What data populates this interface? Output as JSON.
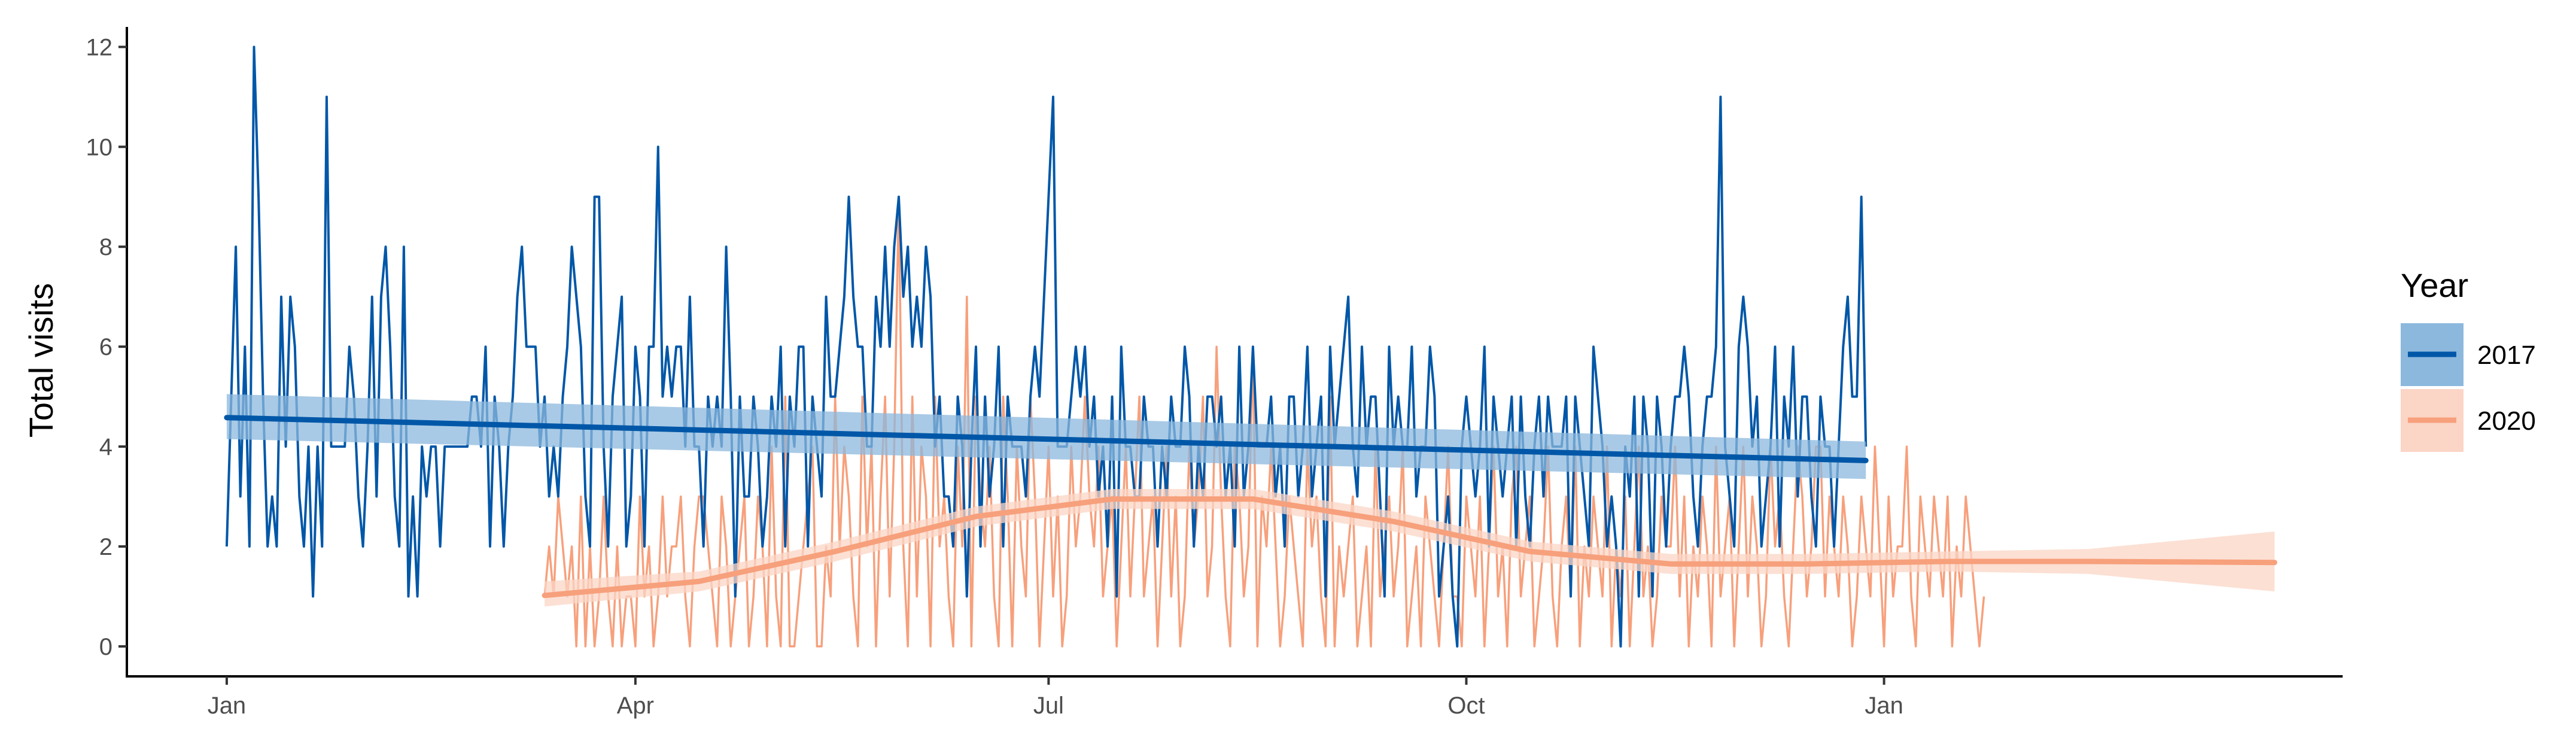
{
  "chart_data": {
    "type": "line",
    "ylabel": "Total visits",
    "xlabel": "",
    "x_tick_labels": [
      "Jan",
      "Apr",
      "Jul",
      "Oct",
      "Jan"
    ],
    "x_ticks": [
      "2017-01-01",
      "2017-04-01",
      "2017-07-01",
      "2017-10-01",
      "2018-01-01"
    ],
    "xlim": [
      "2016-12-10",
      "2018-04-12"
    ],
    "y_ticks": [
      0,
      2,
      4,
      6,
      8,
      10,
      12
    ],
    "ylim": [
      -0.6,
      12.4
    ],
    "grid": false,
    "legend": {
      "title": "Year",
      "position": "right",
      "entries": [
        {
          "label": "2017",
          "color": "#0057a8",
          "band_color": "#8cb8dd"
        },
        {
          "label": "2020",
          "color": "#f7a07c",
          "band_color": "#fbd5c6"
        }
      ]
    },
    "series": [
      {
        "name": "2017",
        "color": "#0057a8",
        "start_date": "2017-01-01",
        "values": [
          2,
          5,
          8,
          3,
          6,
          2,
          12,
          9,
          5,
          2,
          3,
          2,
          7,
          4,
          7,
          6,
          3,
          2,
          4,
          1,
          4,
          2,
          11,
          4,
          4,
          4,
          4,
          6,
          5,
          3,
          2,
          4,
          7,
          3,
          7,
          8,
          6,
          3,
          2,
          8,
          1,
          3,
          1,
          4,
          3,
          4,
          4,
          2,
          4,
          4,
          4,
          4,
          4,
          4,
          5,
          5,
          4,
          6,
          2,
          5,
          4,
          2,
          4,
          5,
          7,
          8,
          6,
          6,
          6,
          4,
          5,
          3,
          4,
          3,
          5,
          6,
          8,
          7,
          6,
          3,
          2,
          9,
          9,
          4,
          2,
          5,
          6,
          7,
          2,
          3,
          6,
          5,
          2,
          6,
          6,
          10,
          5,
          6,
          5,
          6,
          6,
          4,
          7,
          4,
          4,
          2,
          5,
          4,
          5,
          4,
          8,
          5,
          1,
          5,
          3,
          3,
          5,
          4,
          2,
          3,
          5,
          4,
          6,
          2,
          5,
          4,
          6,
          6,
          2,
          5,
          4,
          3,
          7,
          5,
          5,
          6,
          7,
          9,
          7,
          6,
          6,
          4,
          4,
          7,
          6,
          8,
          6,
          8,
          9,
          7,
          8,
          6,
          7,
          6,
          8,
          7,
          4,
          5,
          3,
          3,
          2,
          5,
          4,
          1,
          4,
          6,
          2,
          5,
          3,
          4,
          6,
          2,
          5,
          4,
          4,
          4,
          3,
          5,
          6,
          5,
          7,
          9,
          11,
          4,
          4,
          4,
          5,
          6,
          5,
          6,
          4,
          5,
          3,
          4,
          2,
          5,
          1,
          6,
          4,
          4,
          3,
          3,
          5,
          4,
          4,
          2,
          4,
          3,
          5,
          4,
          4,
          6,
          5,
          2,
          4,
          3,
          5,
          5,
          4,
          5,
          3,
          4,
          2,
          6,
          3,
          4,
          6,
          4,
          4,
          4,
          5,
          3,
          4,
          2,
          5,
          5,
          3,
          4,
          6,
          3,
          4,
          5,
          1,
          6,
          4,
          5,
          6,
          7,
          4,
          3,
          6,
          4,
          5,
          5,
          3,
          1,
          6,
          4,
          5,
          4,
          4,
          6,
          3,
          4,
          4,
          6,
          5,
          1,
          2,
          3,
          1,
          0,
          4,
          5,
          4,
          3,
          4,
          6,
          2,
          5,
          4,
          3,
          4,
          5,
          2,
          5,
          3,
          2,
          4,
          5,
          3,
          5,
          4,
          4,
          4,
          5,
          1,
          5,
          4,
          3,
          2,
          6,
          5,
          4,
          2,
          3,
          2,
          0,
          4,
          3,
          5,
          1,
          5,
          4,
          1,
          5,
          4,
          2,
          4,
          5,
          5,
          6,
          5,
          3,
          2,
          4,
          5,
          5,
          6,
          11,
          4,
          3,
          2,
          6,
          7,
          6,
          4,
          5,
          2,
          3,
          4,
          6,
          2,
          5,
          4,
          6,
          3,
          5,
          5,
          3,
          2,
          5,
          4,
          4,
          2,
          4,
          6,
          7,
          5,
          5,
          9,
          4
        ]
      },
      {
        "name": "2020",
        "color": "#f7a07c",
        "start_date": "2017-03-12",
        "values": [
          1,
          2,
          1,
          3,
          2,
          1,
          2,
          0,
          3,
          0,
          2,
          0,
          1,
          3,
          1,
          0,
          2,
          0,
          1,
          1,
          0,
          3,
          1,
          2,
          0,
          1,
          3,
          1,
          2,
          2,
          3,
          1,
          0,
          2,
          3,
          3,
          2,
          1,
          0,
          3,
          2,
          0,
          1,
          2,
          3,
          0,
          1,
          3,
          2,
          0,
          4,
          1,
          0,
          5,
          0,
          0,
          1,
          2,
          3,
          4,
          0,
          0,
          2,
          1,
          5,
          2,
          4,
          3,
          1,
          0,
          5,
          2,
          4,
          0,
          3,
          5,
          1,
          4,
          9,
          2,
          0,
          5,
          1,
          4,
          3,
          0,
          5,
          2,
          3,
          1,
          0,
          4,
          2,
          7,
          0,
          5,
          3,
          2,
          4,
          1,
          0,
          5,
          3,
          0,
          4,
          2,
          1,
          5,
          3,
          0,
          2,
          4,
          1,
          3,
          0,
          1,
          4,
          2,
          3,
          5,
          3,
          2,
          4,
          1,
          2,
          3,
          0,
          2,
          4,
          1,
          3,
          5,
          1,
          2,
          3,
          0,
          2,
          4,
          1,
          3,
          0,
          1,
          4,
          2,
          3,
          5,
          1,
          2,
          6,
          3,
          1,
          0,
          4,
          3,
          1,
          2,
          6,
          0,
          3,
          2,
          4,
          2,
          0,
          1,
          3,
          2,
          1,
          0,
          4,
          2,
          3,
          1,
          0,
          5,
          0,
          2,
          1,
          2,
          3,
          0,
          1,
          2,
          0,
          4,
          1,
          2,
          3,
          1,
          2,
          4,
          0,
          1,
          2,
          0,
          3,
          2,
          1,
          0,
          2,
          4,
          1,
          1,
          0,
          3,
          2,
          1,
          3,
          0,
          2,
          4,
          1,
          2,
          0,
          3,
          4,
          1,
          2,
          3,
          0,
          1,
          2,
          4,
          1,
          0,
          2,
          3,
          1,
          4,
          0,
          2,
          1,
          3,
          2,
          1,
          4,
          0,
          2,
          1,
          3,
          0,
          2,
          4,
          1,
          2,
          0,
          1,
          3,
          2,
          2,
          4,
          1,
          3,
          0,
          2,
          1,
          3,
          2,
          0,
          4,
          1,
          2,
          3,
          0,
          2,
          4,
          1,
          3,
          2,
          0,
          1,
          4,
          2,
          3,
          1,
          0,
          2,
          4,
          3,
          1,
          2,
          4,
          4,
          1,
          3,
          2,
          1,
          3,
          2,
          0,
          1,
          3,
          2,
          1,
          4,
          2,
          0,
          3,
          1,
          2,
          2,
          4,
          1,
          0,
          3,
          2,
          1,
          3,
          2,
          1,
          3,
          0,
          2,
          1,
          3,
          2,
          1,
          0,
          1
        ]
      }
    ],
    "trend_lines": [
      {
        "name": "2017",
        "color": "#0057a8",
        "band_color": "#8cb8dd",
        "points": [
          {
            "x": "2017-01-01",
            "y": 4.58,
            "lo": 4.15,
            "hi": 5.05
          },
          {
            "x": "2017-12-28",
            "y": 3.72,
            "lo": 3.35,
            "hi": 4.1
          }
        ]
      },
      {
        "name": "2020",
        "color": "#f7a07c",
        "band_color": "#fbd5c6",
        "points": [
          {
            "x": "2017-03-12",
            "y": 1.02,
            "lo": 0.8,
            "hi": 1.3
          },
          {
            "x": "2017-04-15",
            "y": 1.3,
            "lo": 1.1,
            "hi": 1.5
          },
          {
            "x": "2017-05-15",
            "y": 1.9,
            "lo": 1.7,
            "hi": 2.1
          },
          {
            "x": "2017-06-15",
            "y": 2.6,
            "lo": 2.4,
            "hi": 2.8
          },
          {
            "x": "2017-07-15",
            "y": 2.95,
            "lo": 2.75,
            "hi": 3.15
          },
          {
            "x": "2017-08-15",
            "y": 2.95,
            "lo": 2.75,
            "hi": 3.15
          },
          {
            "x": "2017-09-15",
            "y": 2.5,
            "lo": 2.3,
            "hi": 2.7
          },
          {
            "x": "2017-10-15",
            "y": 1.9,
            "lo": 1.7,
            "hi": 2.1
          },
          {
            "x": "2017-11-15",
            "y": 1.65,
            "lo": 1.45,
            "hi": 1.85
          },
          {
            "x": "2017-12-15",
            "y": 1.65,
            "lo": 1.45,
            "hi": 1.85
          },
          {
            "x": "2018-01-15",
            "y": 1.7,
            "lo": 1.5,
            "hi": 1.9
          },
          {
            "x": "2018-02-15",
            "y": 1.7,
            "lo": 1.45,
            "hi": 1.95
          },
          {
            "x": "2018-03-28",
            "y": 1.68,
            "lo": 1.1,
            "hi": 2.3
          }
        ]
      }
    ]
  }
}
